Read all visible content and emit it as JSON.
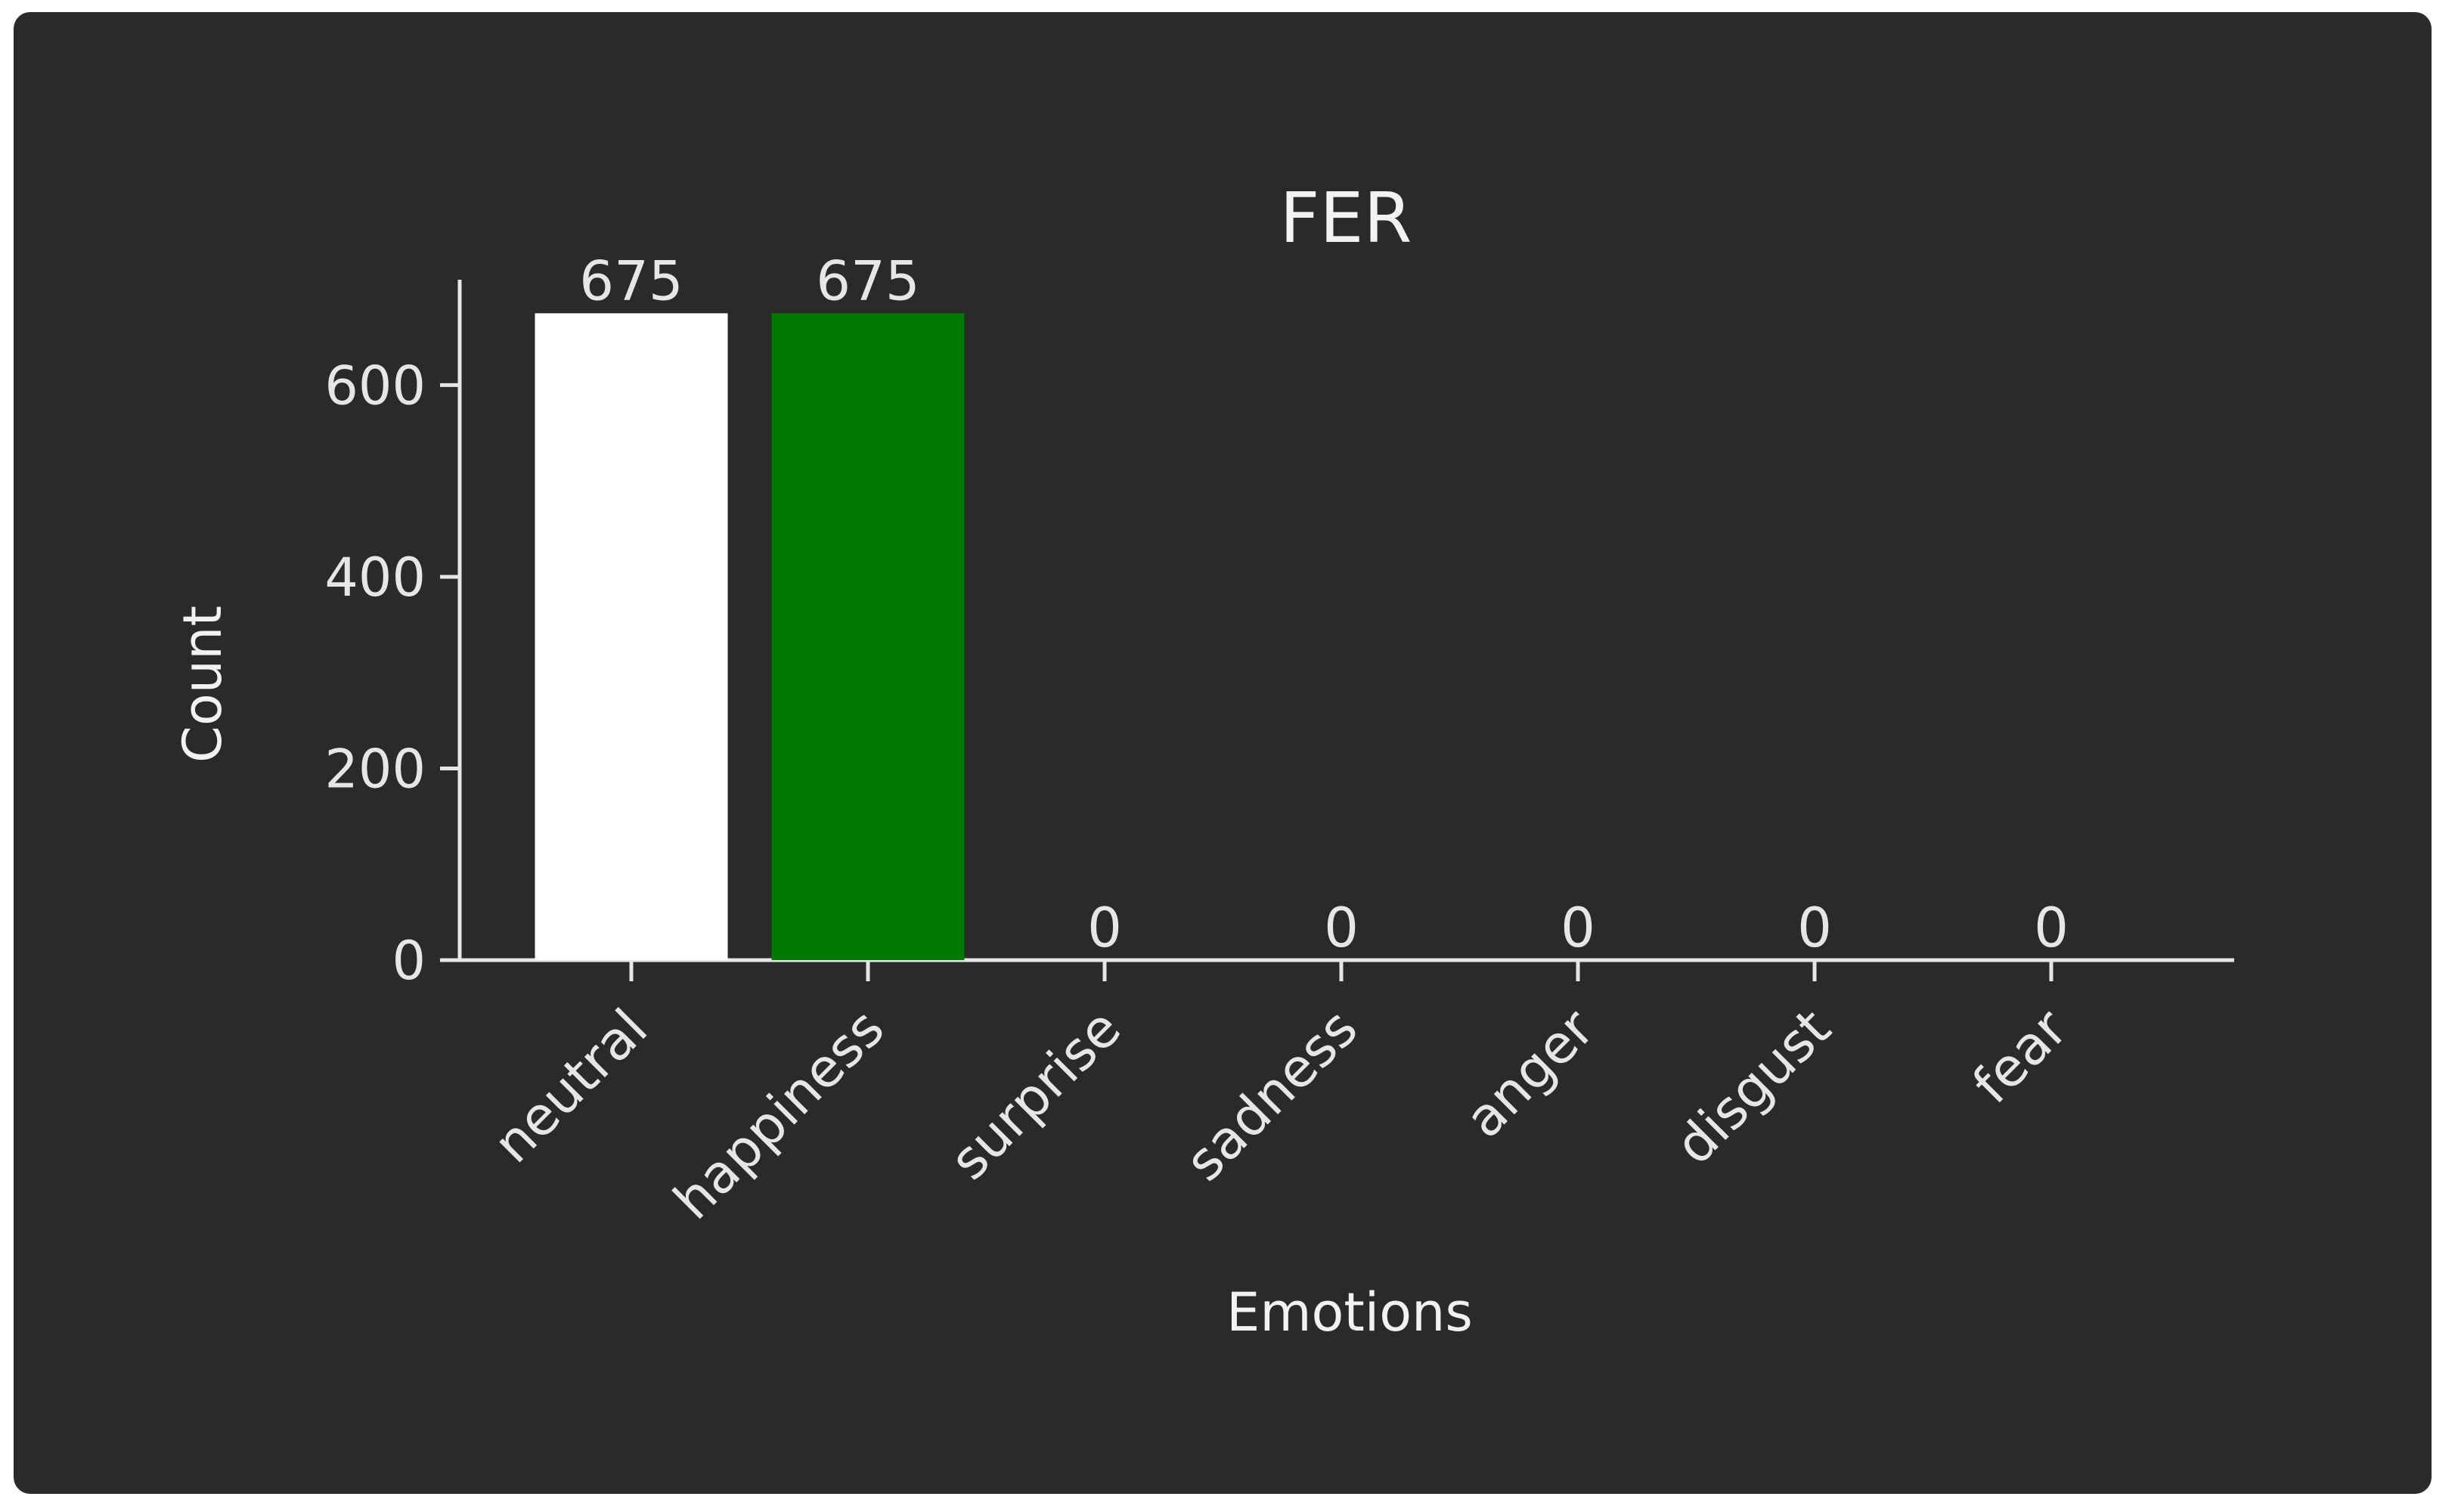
{
  "chart_data": {
    "type": "bar",
    "title": "FER",
    "xlabel": "Emotions",
    "ylabel": "Count",
    "categories": [
      "neutral",
      "happiness",
      "surprise",
      "sadness",
      "anger",
      "disgust",
      "fear"
    ],
    "values": [
      675,
      675,
      0,
      0,
      0,
      0,
      0
    ],
    "data_labels": [
      "675",
      "675",
      "0",
      "0",
      "0",
      "0",
      "0"
    ],
    "bar_colors": [
      "#ffffff",
      "#007a00",
      "#2a2a2a",
      "#2a2a2a",
      "#2a2a2a",
      "#2a2a2a",
      "#2a2a2a"
    ],
    "ylim": [
      0,
      710
    ],
    "yticks": [
      0,
      200,
      400,
      600
    ],
    "grid": false,
    "axis_color": "#e6e6e6",
    "background": "#2a2a2a"
  }
}
